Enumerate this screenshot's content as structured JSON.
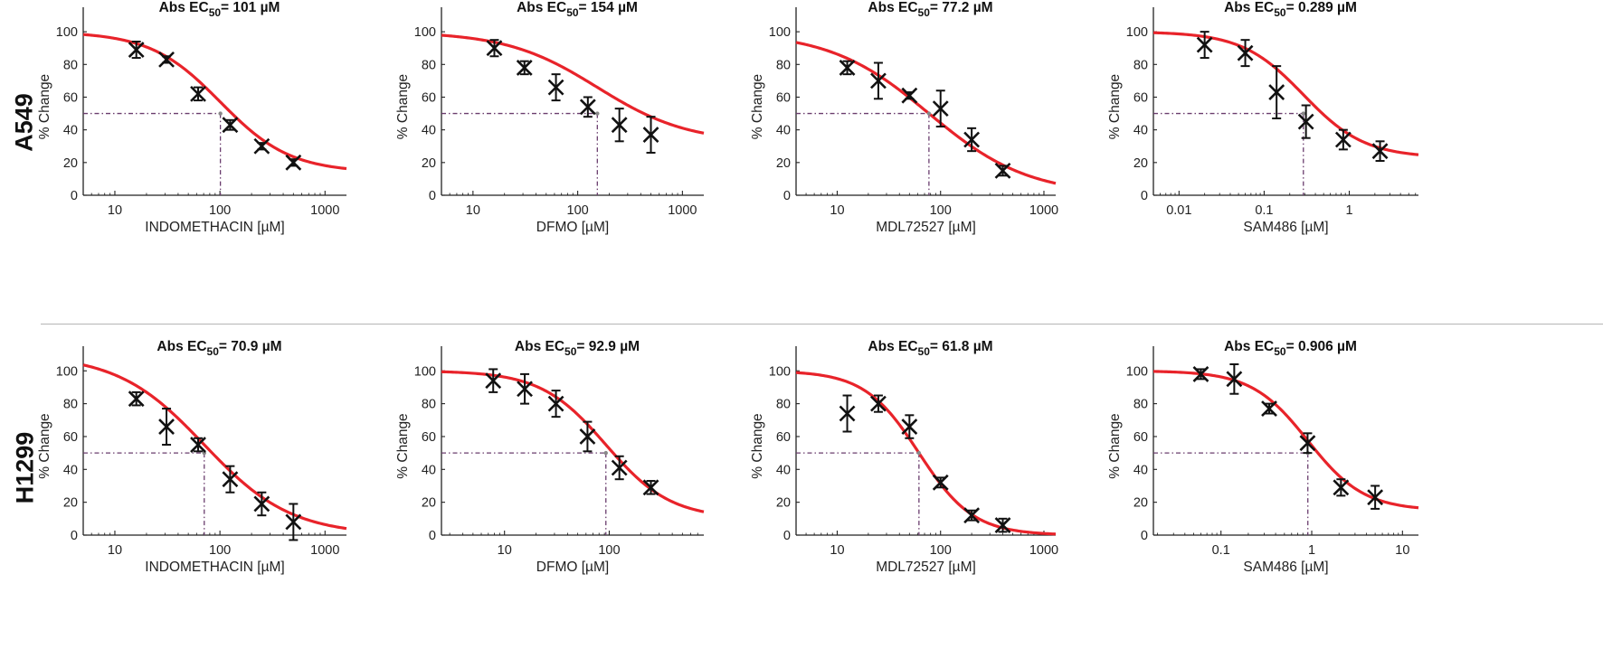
{
  "rows": [
    {
      "label": "A549"
    },
    {
      "label": "H1299"
    }
  ],
  "colors": {
    "fit": "#e8232a",
    "marker": "#111111",
    "guide": "#6a3d6e",
    "axis": "#222222",
    "divider": "#b5b5b5"
  },
  "chart_data": [
    {
      "type": "scatter",
      "row": "A549",
      "title_prefix": "Abs EC",
      "title_sub": "50",
      "title_suffix": "= 101 µM",
      "xlabel": "INDOMETHACIN [µM]",
      "ylabel": "% Change",
      "xscale": "log",
      "xlim": [
        5,
        1600
      ],
      "ylim": [
        0,
        115
      ],
      "xticks": [
        {
          "v": 10,
          "label": "10"
        },
        {
          "v": 100,
          "label": "100"
        },
        {
          "v": 1000,
          "label": "1000"
        }
      ],
      "yticks": [
        0,
        20,
        40,
        60,
        80,
        100
      ],
      "fit": {
        "top": 100,
        "bottom": 14,
        "ec50": 101,
        "hill": 1.3
      },
      "points": [
        {
          "x": 16,
          "y": 89,
          "err": 5
        },
        {
          "x": 31,
          "y": 83,
          "err": 2
        },
        {
          "x": 62,
          "y": 62,
          "err": 4
        },
        {
          "x": 125,
          "y": 43,
          "err": 3
        },
        {
          "x": 250,
          "y": 30,
          "err": 2
        },
        {
          "x": 500,
          "y": 20,
          "err": 2
        }
      ]
    },
    {
      "type": "scatter",
      "row": "A549",
      "title_prefix": "Abs EC",
      "title_sub": "50",
      "title_suffix": "= 154 µM",
      "xlabel": "DFMO [µM]",
      "ylabel": "% Change",
      "xscale": "log",
      "xlim": [
        5,
        1600
      ],
      "ylim": [
        0,
        115
      ],
      "xticks": [
        {
          "v": 10,
          "label": "10"
        },
        {
          "v": 100,
          "label": "100"
        },
        {
          "v": 1000,
          "label": "1000"
        }
      ],
      "yticks": [
        0,
        20,
        40,
        60,
        80,
        100
      ],
      "fit": {
        "top": 100,
        "bottom": 32,
        "ec50": 154,
        "hill": 1.0
      },
      "points": [
        {
          "x": 16,
          "y": 90,
          "err": 5
        },
        {
          "x": 31,
          "y": 78,
          "err": 4
        },
        {
          "x": 62,
          "y": 66,
          "err": 8
        },
        {
          "x": 125,
          "y": 54,
          "err": 6
        },
        {
          "x": 250,
          "y": 43,
          "err": 10
        },
        {
          "x": 500,
          "y": 37,
          "err": 11
        }
      ]
    },
    {
      "type": "scatter",
      "row": "A549",
      "title_prefix": "Abs EC",
      "title_sub": "50",
      "title_suffix": "= 77.2 µM",
      "xlabel": "MDL72527 [µM]",
      "ylabel": "% Change",
      "xscale": "log",
      "xlim": [
        4,
        1300
      ],
      "ylim": [
        0,
        115
      ],
      "xticks": [
        {
          "v": 10,
          "label": "10"
        },
        {
          "v": 100,
          "label": "100"
        },
        {
          "v": 1000,
          "label": "1000"
        }
      ],
      "yticks": [
        0,
        20,
        40,
        60,
        80,
        100
      ],
      "fit": {
        "top": 100,
        "bottom": 0,
        "ec50": 77.2,
        "hill": 0.9
      },
      "points": [
        {
          "x": 12.5,
          "y": 78,
          "err": 4
        },
        {
          "x": 25,
          "y": 70,
          "err": 11
        },
        {
          "x": 50,
          "y": 61,
          "err": 2
        },
        {
          "x": 100,
          "y": 53,
          "err": 11
        },
        {
          "x": 200,
          "y": 34,
          "err": 7
        },
        {
          "x": 400,
          "y": 15,
          "err": 3
        }
      ]
    },
    {
      "type": "scatter",
      "row": "A549",
      "title_prefix": "Abs EC",
      "title_sub": "50",
      "title_suffix": "= 0.289 µM",
      "xlabel": "SAM486 [µM]",
      "ylabel": "% Change",
      "xscale": "log",
      "xlim": [
        0.005,
        6.5
      ],
      "ylim": [
        0,
        115
      ],
      "xticks": [
        {
          "v": 0.01,
          "label": "0.01"
        },
        {
          "v": 0.1,
          "label": "0.1"
        },
        {
          "v": 1,
          "label": "1"
        }
      ],
      "yticks": [
        0,
        20,
        40,
        60,
        80,
        100
      ],
      "fit": {
        "top": 100,
        "bottom": 23,
        "ec50": 0.289,
        "hill": 1.2
      },
      "points": [
        {
          "x": 0.02,
          "y": 92,
          "err": 8
        },
        {
          "x": 0.06,
          "y": 87,
          "err": 8
        },
        {
          "x": 0.14,
          "y": 63,
          "err": 16
        },
        {
          "x": 0.31,
          "y": 45,
          "err": 10
        },
        {
          "x": 0.85,
          "y": 34,
          "err": 6
        },
        {
          "x": 2.3,
          "y": 27,
          "err": 6
        }
      ]
    },
    {
      "type": "scatter",
      "row": "H1299",
      "title_prefix": "Abs EC",
      "title_sub": "50",
      "title_suffix": "= 70.9 µM",
      "xlabel": "INDOMETHACIN [µM]",
      "ylabel": "% Change",
      "xscale": "log",
      "xlim": [
        5,
        1600
      ],
      "ylim": [
        0,
        115
      ],
      "xticks": [
        {
          "v": 10,
          "label": "10"
        },
        {
          "v": 100,
          "label": "100"
        },
        {
          "v": 1000,
          "label": "1000"
        }
      ],
      "yticks": [
        0,
        20,
        40,
        60,
        80,
        100
      ],
      "fit": {
        "top": 110,
        "bottom": 0,
        "ec50": 70.9,
        "hill": 1.05
      },
      "points": [
        {
          "x": 16,
          "y": 83,
          "err": 4
        },
        {
          "x": 31,
          "y": 66,
          "err": 11
        },
        {
          "x": 62,
          "y": 55,
          "err": 4
        },
        {
          "x": 125,
          "y": 34,
          "err": 8
        },
        {
          "x": 250,
          "y": 19,
          "err": 7
        },
        {
          "x": 500,
          "y": 8,
          "err": 11
        }
      ]
    },
    {
      "type": "scatter",
      "row": "H1299",
      "title_prefix": "Abs EC",
      "title_sub": "50",
      "title_suffix": "= 92.9 µM",
      "xlabel": "DFMO [µM]",
      "ylabel": "% Change",
      "xscale": "log",
      "xlim": [
        2.5,
        800
      ],
      "ylim": [
        0,
        115
      ],
      "xticks": [
        {
          "v": 10,
          "label": "10"
        },
        {
          "v": 100,
          "label": "100"
        }
      ],
      "yticks": [
        0,
        20,
        40,
        60,
        80,
        100
      ],
      "fit": {
        "top": 100,
        "bottom": 10,
        "ec50": 92.9,
        "hill": 1.4
      },
      "points": [
        {
          "x": 7.8,
          "y": 94,
          "err": 7
        },
        {
          "x": 15.6,
          "y": 89,
          "err": 9
        },
        {
          "x": 31,
          "y": 80,
          "err": 8
        },
        {
          "x": 62,
          "y": 60,
          "err": 9
        },
        {
          "x": 125,
          "y": 41,
          "err": 7
        },
        {
          "x": 250,
          "y": 29,
          "err": 4
        }
      ]
    },
    {
      "type": "scatter",
      "row": "H1299",
      "title_prefix": "Abs EC",
      "title_sub": "50",
      "title_suffix": "= 61.8 µM",
      "xlabel": "MDL72527 [µM]",
      "ylabel": "% Change",
      "xscale": "log",
      "xlim": [
        4,
        1300
      ],
      "ylim": [
        0,
        115
      ],
      "xticks": [
        {
          "v": 10,
          "label": "10"
        },
        {
          "v": 100,
          "label": "100"
        },
        {
          "v": 1000,
          "label": "1000"
        }
      ],
      "yticks": [
        0,
        20,
        40,
        60,
        80,
        100
      ],
      "fit": {
        "top": 100,
        "bottom": 0,
        "ec50": 61.8,
        "hill": 1.65
      },
      "points": [
        {
          "x": 12.5,
          "y": 74,
          "err": 11
        },
        {
          "x": 25,
          "y": 80,
          "err": 5
        },
        {
          "x": 50,
          "y": 66,
          "err": 7
        },
        {
          "x": 100,
          "y": 32,
          "err": 3
        },
        {
          "x": 200,
          "y": 12,
          "err": 3
        },
        {
          "x": 400,
          "y": 6,
          "err": 4
        }
      ]
    },
    {
      "type": "scatter",
      "row": "H1299",
      "title_prefix": "Abs EC",
      "title_sub": "50",
      "title_suffix": "= 0.906 µM",
      "xlabel": "SAM486 [µM]",
      "ylabel": "% Change",
      "xscale": "log",
      "xlim": [
        0.018,
        15
      ],
      "ylim": [
        0,
        115
      ],
      "xticks": [
        {
          "v": 0.1,
          "label": "0.1"
        },
        {
          "v": 1,
          "label": "1"
        },
        {
          "v": 10,
          "label": "10"
        }
      ],
      "yticks": [
        0,
        20,
        40,
        60,
        80,
        100
      ],
      "fit": {
        "top": 100,
        "bottom": 15,
        "ec50": 0.906,
        "hill": 1.4
      },
      "points": [
        {
          "x": 0.06,
          "y": 98,
          "err": 3
        },
        {
          "x": 0.14,
          "y": 95,
          "err": 9
        },
        {
          "x": 0.34,
          "y": 77,
          "err": 3
        },
        {
          "x": 0.9,
          "y": 56,
          "err": 6
        },
        {
          "x": 2.1,
          "y": 29,
          "err": 5
        },
        {
          "x": 5,
          "y": 23,
          "err": 7
        }
      ]
    }
  ]
}
